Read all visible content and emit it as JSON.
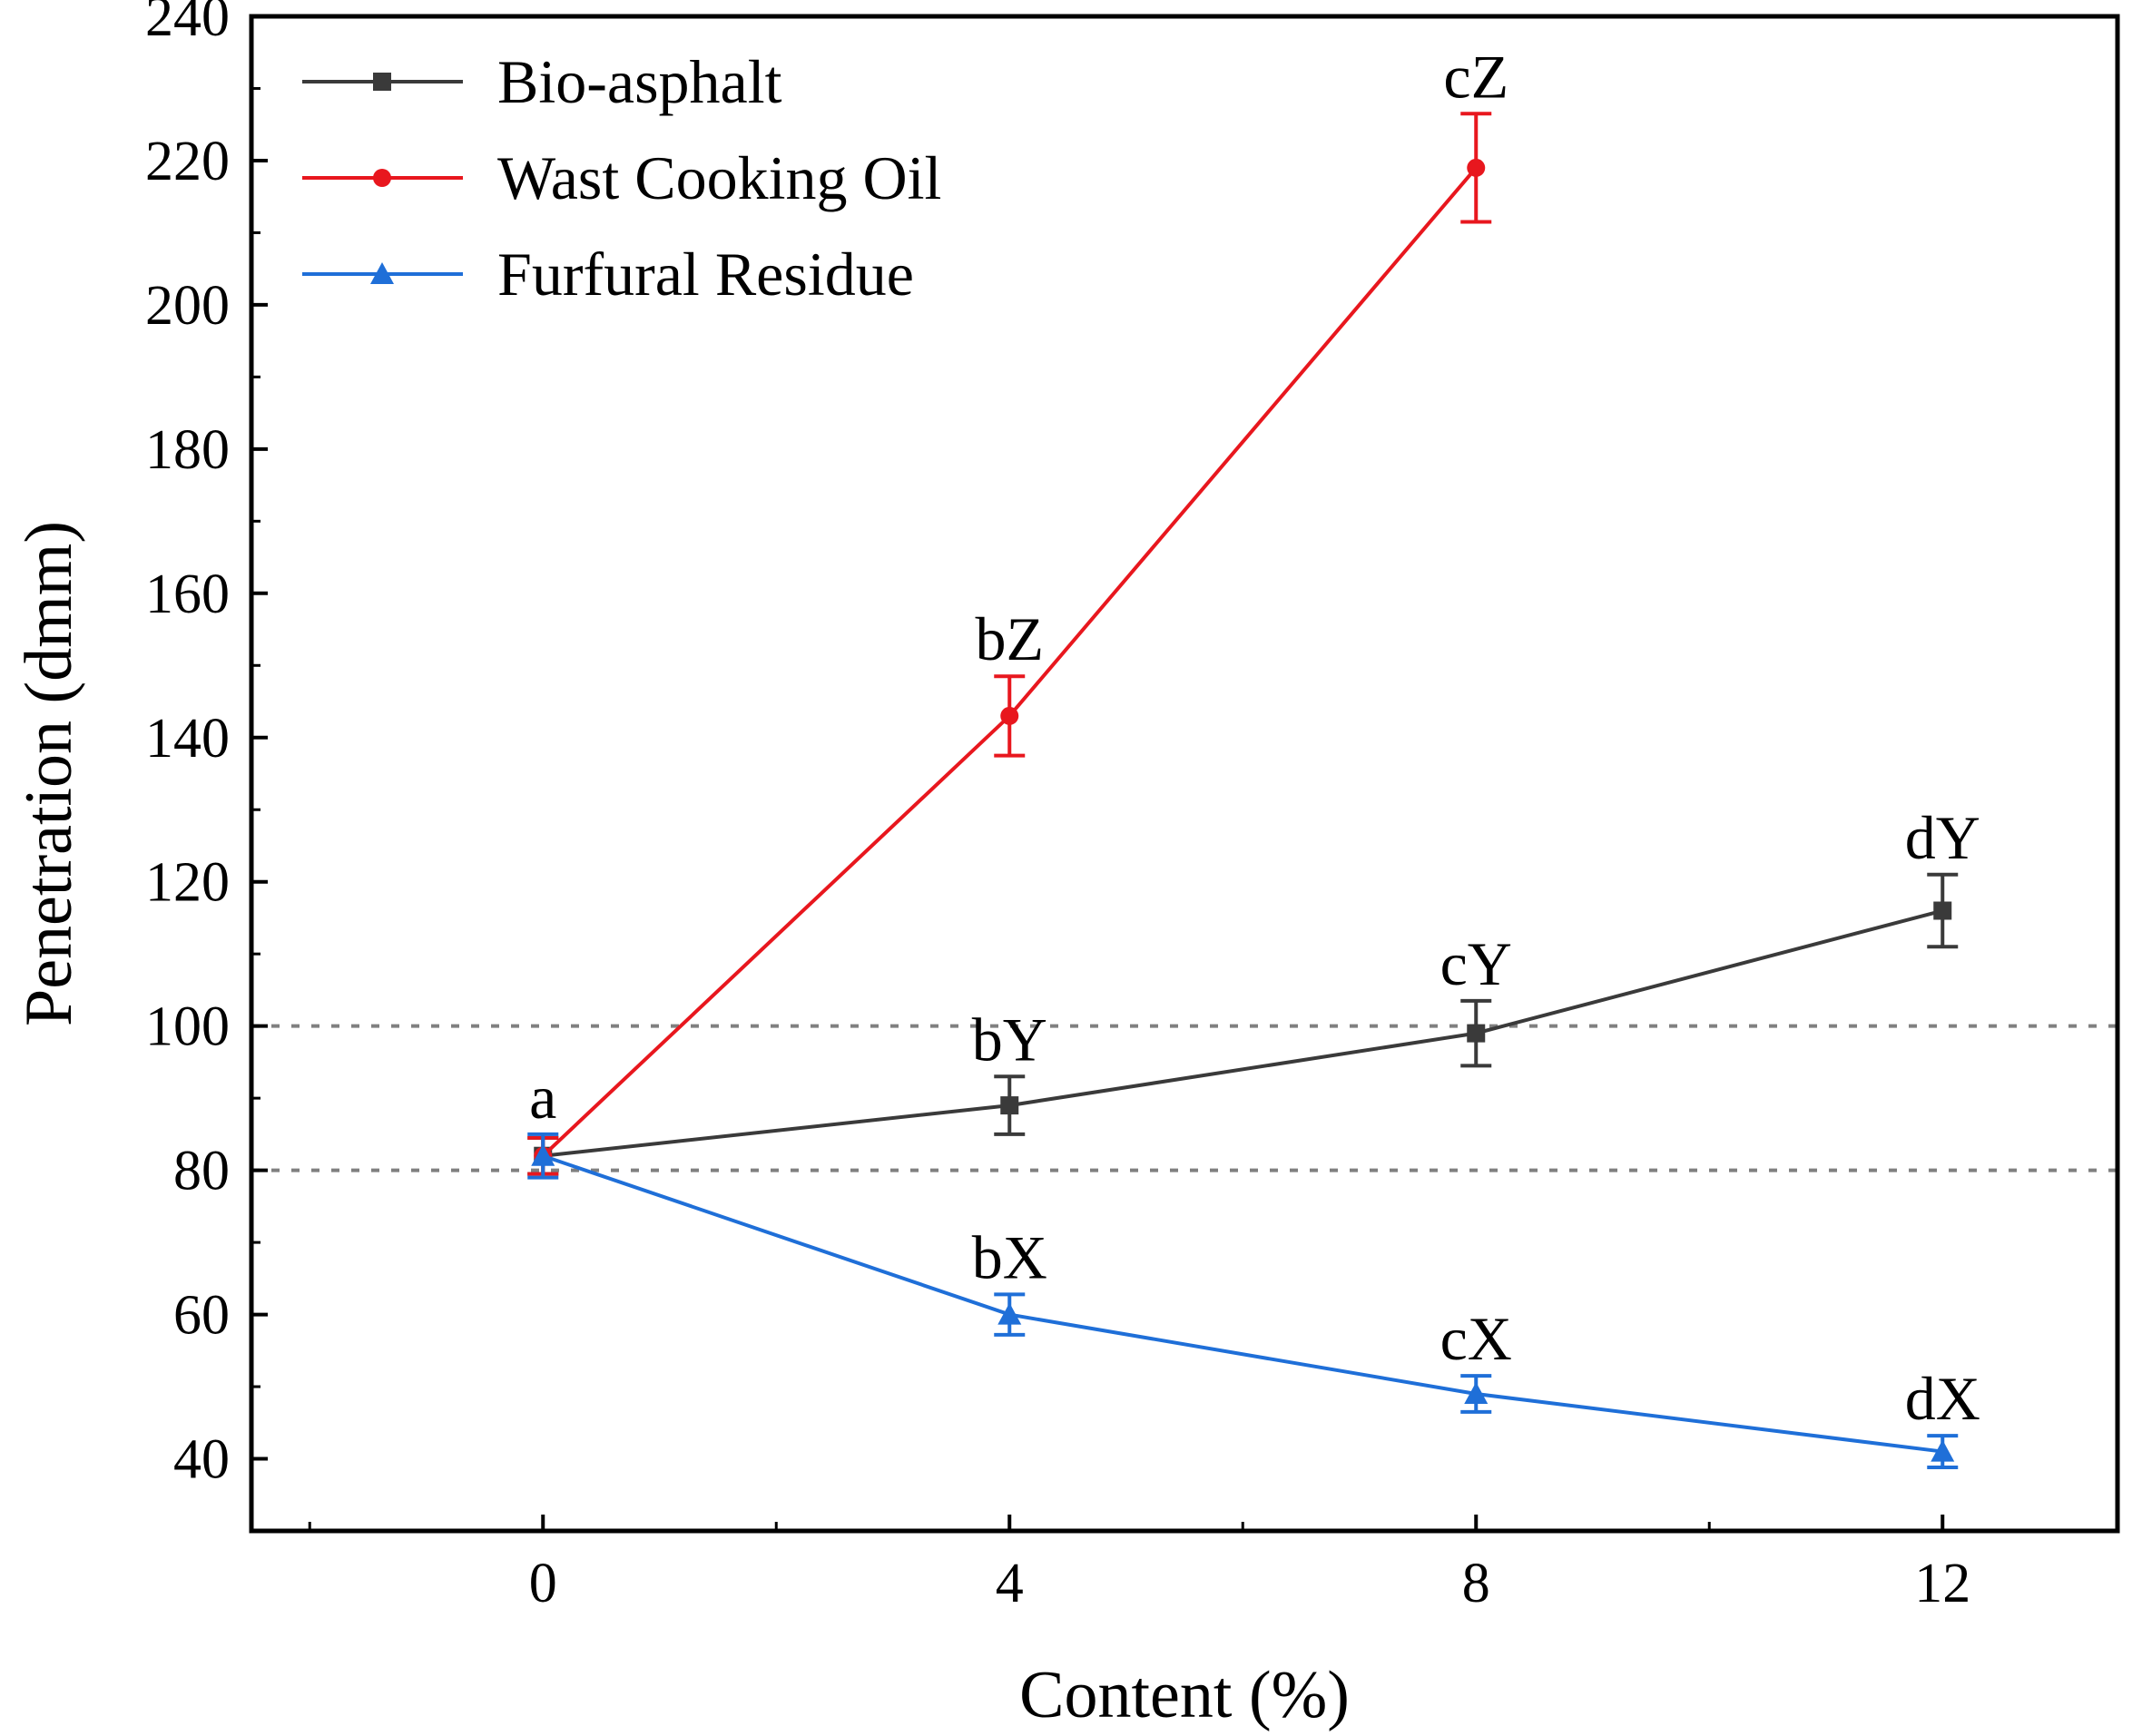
{
  "chart_data": {
    "type": "line",
    "title": "",
    "xlabel": "Content (%)",
    "ylabel": "Penetration (dmm)",
    "xlim": [
      -2.5,
      13.5
    ],
    "ylim": [
      30,
      240
    ],
    "xticks": [
      0,
      4,
      8,
      12
    ],
    "yticks": [
      40,
      60,
      80,
      100,
      120,
      140,
      160,
      180,
      200,
      220,
      240
    ],
    "reference_lines": [
      {
        "y": 80,
        "style": "dotted",
        "color": "#808080"
      },
      {
        "y": 100,
        "style": "dotted",
        "color": "#808080"
      }
    ],
    "legend_position": "top-left",
    "series": [
      {
        "name": "Bio-asphalt",
        "color": "#3a3a3a",
        "marker": "square",
        "x": [
          0,
          4,
          8,
          12
        ],
        "values": [
          82,
          89,
          99,
          116
        ],
        "errors": [
          2.5,
          4,
          4.5,
          5
        ],
        "labels": [
          "",
          "bY",
          "cY",
          "dY"
        ]
      },
      {
        "name": "Wast Cooking Oil",
        "color": "#e8171e",
        "marker": "circle",
        "x": [
          0,
          4,
          8
        ],
        "values": [
          82,
          143,
          219
        ],
        "errors": [
          2.5,
          5.5,
          7.5
        ],
        "labels": [
          "",
          "bZ",
          "cZ"
        ]
      },
      {
        "name": "Furfural Residue",
        "color": "#1f6fd8",
        "marker": "triangle",
        "x": [
          0,
          4,
          8,
          12
        ],
        "values": [
          82,
          60,
          49,
          41
        ],
        "errors": [
          3,
          2.8,
          2.5,
          2.2
        ],
        "labels": [
          "a",
          "bX",
          "cX",
          "dX"
        ]
      }
    ]
  }
}
